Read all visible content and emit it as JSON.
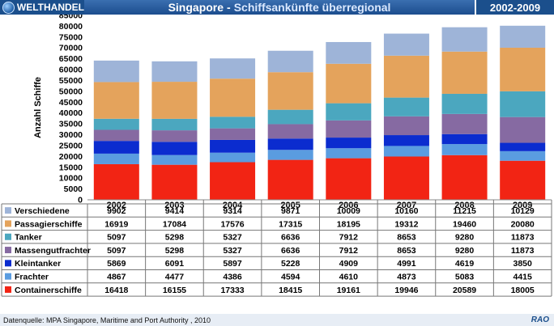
{
  "header": {
    "brand": "WELTHANDEL",
    "title": "Singapore",
    "separator": "-",
    "subtitle": "Schiffsankünfte überregional",
    "years": "2002-2009"
  },
  "colors": {
    "Verschiedene": "#9eb4d8",
    "Passagierschiffe": "#e4a35c",
    "Tanker": "#4ba7bf",
    "Massengutfrachter": "#866aa2",
    "Kleintanker": "#0b2ccf",
    "Frachter": "#5a9ce0",
    "Containerschiffe": "#f22414"
  },
  "chart_data": {
    "type": "bar",
    "stacked": true,
    "categories": [
      "2002",
      "2003",
      "2004",
      "2005",
      "2006",
      "2007",
      "2008",
      "2009"
    ],
    "ylabel": "Anzahl Schiffe",
    "ylim": [
      0,
      85000
    ],
    "yticks": [
      0,
      5000,
      10000,
      15000,
      20000,
      25000,
      30000,
      35000,
      40000,
      45000,
      50000,
      55000,
      60000,
      65000,
      70000,
      75000,
      80000,
      85000
    ],
    "series": [
      {
        "name": "Verschiedene",
        "values": [
          9902,
          9414,
          9314,
          9871,
          10009,
          10160,
          11215,
          10129
        ]
      },
      {
        "name": "Passagierschiffe",
        "values": [
          16919,
          17084,
          17576,
          17315,
          18195,
          19312,
          19460,
          20080
        ]
      },
      {
        "name": "Tanker",
        "values": [
          5097,
          5298,
          5327,
          6636,
          7912,
          8653,
          9280,
          11873
        ]
      },
      {
        "name": "Massengutfrachter",
        "values": [
          5097,
          5298,
          5327,
          6636,
          7912,
          8653,
          9280,
          11873
        ]
      },
      {
        "name": "Kleintanker",
        "values": [
          5869,
          6091,
          5897,
          5228,
          4909,
          4991,
          4619,
          3850
        ]
      },
      {
        "name": "Frachter",
        "values": [
          4867,
          4477,
          4386,
          4594,
          4610,
          4873,
          5083,
          4415
        ]
      },
      {
        "name": "Containerschiffe",
        "values": [
          16418,
          16155,
          17333,
          18415,
          19161,
          19946,
          20589,
          18005
        ]
      }
    ]
  },
  "footer": {
    "source": "Datenquelle: MPA Singapore, Maritime and Port Authority ,  2010",
    "logo": "RAO"
  }
}
